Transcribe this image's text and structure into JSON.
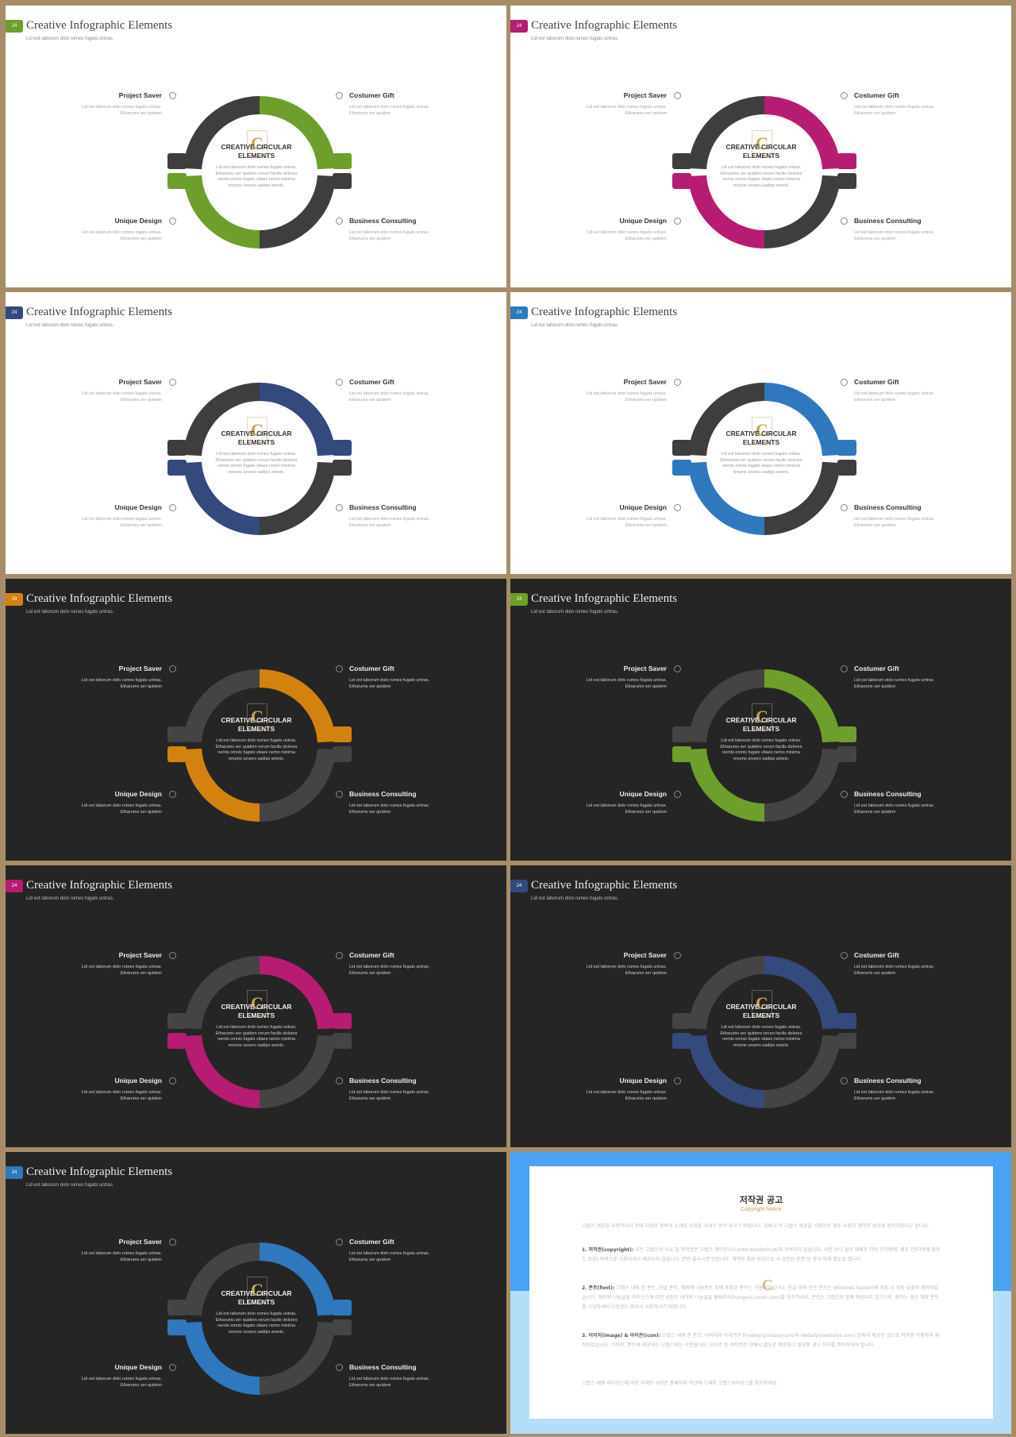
{
  "slides": [
    {
      "theme": "light",
      "accent": "#6e9e2b",
      "badge": "24"
    },
    {
      "theme": "light",
      "accent": "#b61c72",
      "badge": "24"
    },
    {
      "theme": "light",
      "accent": "#34497c",
      "badge": "24"
    },
    {
      "theme": "light",
      "accent": "#2f78bd",
      "badge": "24"
    },
    {
      "theme": "dark",
      "accent": "#d4820f",
      "badge": "24"
    },
    {
      "theme": "dark",
      "accent": "#6e9e2b",
      "badge": "24"
    },
    {
      "theme": "dark",
      "accent": "#b61c72",
      "badge": "24"
    },
    {
      "theme": "dark",
      "accent": "#34497c",
      "badge": "24"
    },
    {
      "theme": "dark",
      "accent": "#2f78bd",
      "badge": "24"
    }
  ],
  "slide_text": {
    "title": "Creative Infographic Elements",
    "subtitle": "Lid est laborum dolo rumes fugats untras.",
    "center_title_1": "CREATIVE CIRCULAR",
    "center_title_2": "ELEMENTS",
    "center_desc": [
      "Lid est laborum dolo rumes fugats untras.",
      "Etharums ser quidem rerum facilis dolores",
      "nemis omnis fugats vitaes nemo minima",
      "rerums unsers sadips amets."
    ],
    "items": [
      {
        "label": "Project Saver",
        "line1": "Lid est laborum dolo rumes fugats untras.",
        "line2": "Etharums ser quidem"
      },
      {
        "label": "Costumer Gift",
        "line1": "Lid est laborum dolo rumes fugats untras.",
        "line2": "Etharums ser quidem"
      },
      {
        "label": "Unique Design",
        "line1": "Lid est laborum dolo rumes fugats untras.",
        "line2": "Etharums ser quidem"
      },
      {
        "label": "Business  Consulting",
        "line1": "Lid est laborum dolo rumes fugats untras.",
        "line2": "Etharums ser quidem"
      }
    ],
    "logo_glyph": "C"
  },
  "notice": {
    "title": "저작권 공고",
    "subtitle": "Copyright Notice",
    "intro": "고랩스 제공을 사용하시기 전에 다음의 항목과 소개된 사항을 시내기 분야 주시기 바랍니다. 위배시 이 고랩스 제공을 사용하신 경우 사용자 계약의 보호에 동의하셨다고 합니다.",
    "p1_head": "1. 저작권(copyright):",
    "p1_body": " 모든 고랩스의 소유 및 저작권은 고랩스 에이전시(Contentstakerhub)에 귀속되어 있습니다. 사전 승낙 없이 재배포 이외 무단판매, 배포 (인터넷에 업로드 포함) 목적으로 이용되거나 제공되지 않습니다. 한번 올리시면 안됩니다. 계약된 회원 방식으로 시 공인된 판권 된 항사 외에 별도로 합니다.",
    "p2_head": "2. 폰트(font):",
    "p2_body": " 고랩스 내에 한 폰트, 한글 폰트, 해외에 나눔폰트 등에 포함된 폰트는 사용되었습니다. 한글 외의 모든 폰트는 Windows System에 포함 시 자동 글꼴로 계약되었습니다. 해외에 나눔글꼴 라이선스에 대한 사항은 네이버 나눔글꼴 홈페이지(hangeul.naver.com)를 참조하세요. 폰트는 고랩스와 함께 제공되지 않으므로, 원하는 경우 해당 폰트를 구입하셔서 다운로드 받아서 사용하시기 바랍니다.",
    "p3_head": "3. 이미지(image) & 아이콘(icon):",
    "p3_body": " 고랩스 내에 한 폰트, 이미지와 아이콘은 Pixabay(pixabay.com)와 Webalys(webalys.com) 등에서 제공한 것으로 저작권 이용하여 제작되었습니다. 이미지, 폰트와 제공되는 고랩스와는 구분됩니다. 아이콘 등 저작권은 위배시 별도로 확인하고 필요한 경우 허가를 취득하셔야 합니다.",
    "outro": "고랩스 제품 라이선스에 대한 자세한 사항은 홈페이지 하단에 기재된 고랩스라이선스를 참조하세요.",
    "logo_glyph": "C"
  },
  "colors": {
    "bg": "#a78d67",
    "dark_gray_segment_light": "#3e3e3e",
    "dark_gray_segment_dark": "#444444"
  }
}
